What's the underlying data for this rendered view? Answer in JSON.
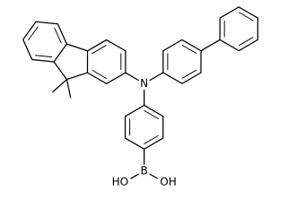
{
  "atoms": {
    "nitrogen": "N",
    "boron": "B",
    "hydroxyl_left": "HO",
    "hydroxyl_right": "OH"
  }
}
